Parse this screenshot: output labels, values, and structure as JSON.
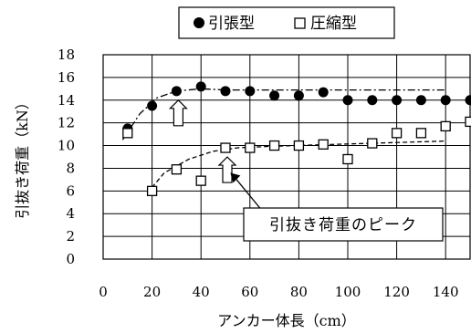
{
  "chart_data": {
    "type": "scatter",
    "xlabel": "アンカー体長（cm）",
    "ylabel": "引抜き荷重（kN）",
    "xlim": [
      0,
      150
    ],
    "ylim": [
      0,
      18
    ],
    "x_ticks": [
      0,
      20,
      40,
      60,
      80,
      100,
      120,
      140
    ],
    "y_ticks": [
      0,
      2,
      4,
      6,
      8,
      10,
      12,
      14,
      16,
      18
    ],
    "grid": true,
    "legend_position": "top",
    "series": [
      {
        "name": "引張型",
        "marker": "filled-circle",
        "color": "#000000",
        "points": [
          [
            10,
            11.5
          ],
          [
            20,
            13.5
          ],
          [
            30,
            14.8
          ],
          [
            40,
            15.2
          ],
          [
            50,
            14.8
          ],
          [
            60,
            14.8
          ],
          [
            70,
            14.4
          ],
          [
            80,
            14.4
          ],
          [
            90,
            14.7
          ],
          [
            100,
            14.0
          ],
          [
            110,
            14.0
          ],
          [
            120,
            14.0
          ],
          [
            130,
            14.0
          ],
          [
            140,
            14.0
          ],
          [
            150,
            14.0
          ]
        ]
      },
      {
        "name": "圧縮型",
        "marker": "open-square",
        "color": "#000000",
        "points": [
          [
            10,
            11.1
          ],
          [
            20,
            6.0
          ],
          [
            30,
            7.9
          ],
          [
            40,
            6.9
          ],
          [
            50,
            9.8
          ],
          [
            60,
            9.8
          ],
          [
            70,
            10.0
          ],
          [
            80,
            10.0
          ],
          [
            90,
            10.1
          ],
          [
            100,
            8.8
          ],
          [
            110,
            10.2
          ],
          [
            120,
            11.1
          ],
          [
            130,
            11.1
          ],
          [
            140,
            11.7
          ],
          [
            150,
            12.1
          ]
        ]
      }
    ],
    "trend_lines": [
      {
        "series": "引張型",
        "style": "dash-dot",
        "points": [
          [
            8,
            10.5
          ],
          [
            15,
            12.8
          ],
          [
            22,
            14.2
          ],
          [
            30,
            14.8
          ],
          [
            40,
            15.0
          ],
          [
            50,
            14.9
          ],
          [
            140,
            14.9
          ]
        ]
      },
      {
        "series": "圧縮型",
        "style": "dashed",
        "points": [
          [
            18,
            5.8
          ],
          [
            25,
            7.6
          ],
          [
            35,
            8.8
          ],
          [
            45,
            9.5
          ],
          [
            55,
            9.8
          ],
          [
            70,
            9.95
          ],
          [
            140,
            10.4
          ]
        ]
      }
    ],
    "peak_arrows_x": [
      30,
      50
    ],
    "annotation": {
      "text": "引抜き荷重のピーク"
    }
  }
}
